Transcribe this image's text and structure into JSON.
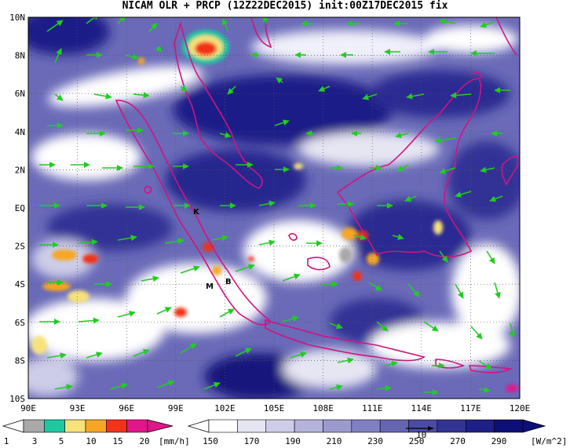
{
  "title": "NICAM OLR + PRCP (12Z22DEC2015) init:00Z17DEC2015 fix",
  "map": {
    "lon_labels": [
      "90E",
      "93E",
      "96E",
      "99E",
      "102E",
      "105E",
      "108E",
      "111E",
      "114E",
      "117E",
      "120E"
    ],
    "lat_labels": [
      "10N",
      "8N",
      "6N",
      "4N",
      "2N",
      "EQ",
      "2S",
      "4S",
      "6S",
      "8S",
      "10S"
    ],
    "markers": [
      "K",
      "M",
      "B"
    ],
    "coastline_color": "#d0157f",
    "vector_color": "#22cc22",
    "grid": "dotted"
  },
  "legend_precip": {
    "labels": [
      "1",
      "3",
      "5",
      "10",
      "15",
      "20"
    ],
    "unit": "[mm/h]",
    "colors": [
      "#a9a9a9",
      "#1fc8a0",
      "#f7e27a",
      "#f6a623",
      "#f23318",
      "#e0168a"
    ]
  },
  "legend_olr": {
    "labels": [
      "150",
      "170",
      "190",
      "210",
      "230",
      "250",
      "270",
      "290"
    ],
    "unit": "[W/m^2]",
    "vector_label": "10",
    "colors": [
      "#ffffff",
      "#e6e6f3",
      "#cdcde8",
      "#b3b3dc",
      "#9a9acf",
      "#7f7fc2",
      "#6565b4",
      "#4b4ba5",
      "#333396",
      "#1f1f88",
      "#0e0e78"
    ]
  }
}
